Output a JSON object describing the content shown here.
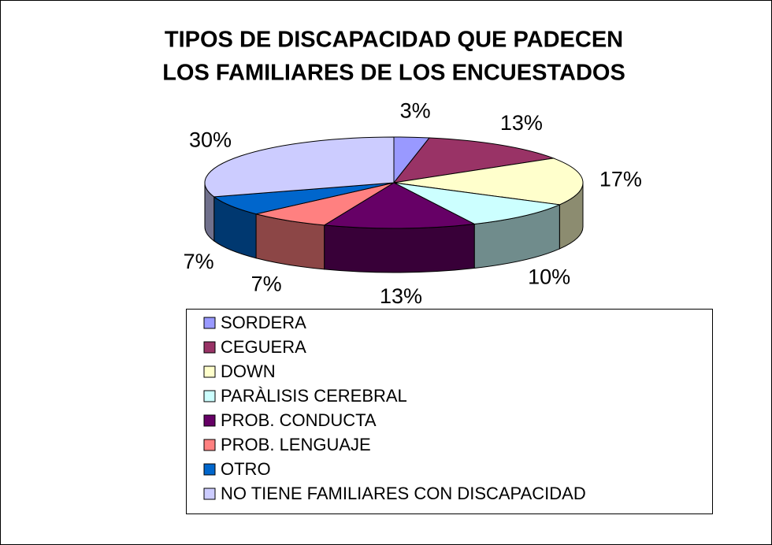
{
  "chart_data": {
    "type": "pie3d",
    "title": [
      "TIPOS DE DISCAPACIDAD QUE PADECEN",
      "LOS FAMILIARES DE LOS ENCUESTADOS"
    ],
    "categories": [
      "SORDERA",
      "CEGUERA",
      "DOWN",
      "PARÀLISIS CEREBRAL",
      "PROB. CONDUCTA",
      "PROB. LENGUAJE",
      "OTRO",
      "NO TIENE FAMILIARES CON DISCAPACIDAD"
    ],
    "values": [
      3,
      13,
      17,
      10,
      13,
      7,
      7,
      30
    ],
    "value_labels": [
      "3%",
      "13%",
      "17%",
      "10%",
      "13%",
      "7%",
      "7%",
      "30%"
    ],
    "colors": [
      "#9999ff",
      "#993366",
      "#ffffcc",
      "#ccffff",
      "#660066",
      "#ff8080",
      "#0066cc",
      "#ccccff"
    ],
    "legend": "bottom"
  }
}
